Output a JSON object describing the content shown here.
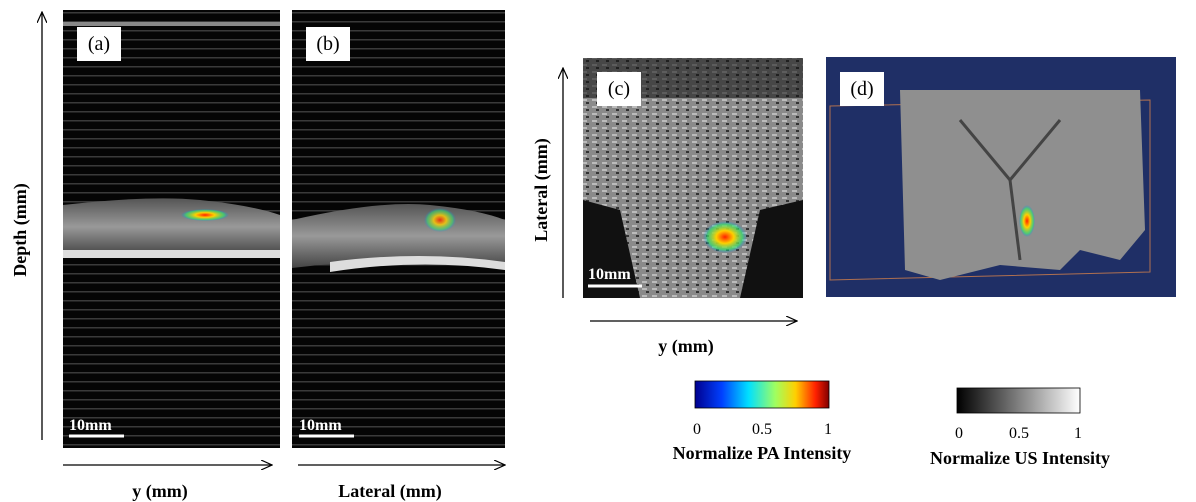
{
  "panels": [
    {
      "label": "(a)",
      "scale_bar": "10mm"
    },
    {
      "label": "(b)",
      "scale_bar": "10mm"
    },
    {
      "label": "(c)",
      "scale_bar": "10mm"
    },
    {
      "label": "(d)"
    }
  ],
  "axes": {
    "a_x": "y (mm)",
    "a_y": "Depth (mm)",
    "b_x": "Lateral (mm)",
    "c_x": "y (mm)",
    "c_y": "Lateral (mm)"
  },
  "colorbars": [
    {
      "title": "Normalize PA Intensity",
      "ticks": [
        0,
        0.5,
        1
      ]
    },
    {
      "title": "Normalize US Intensity",
      "ticks": [
        0,
        0.5,
        1
      ]
    }
  ]
}
